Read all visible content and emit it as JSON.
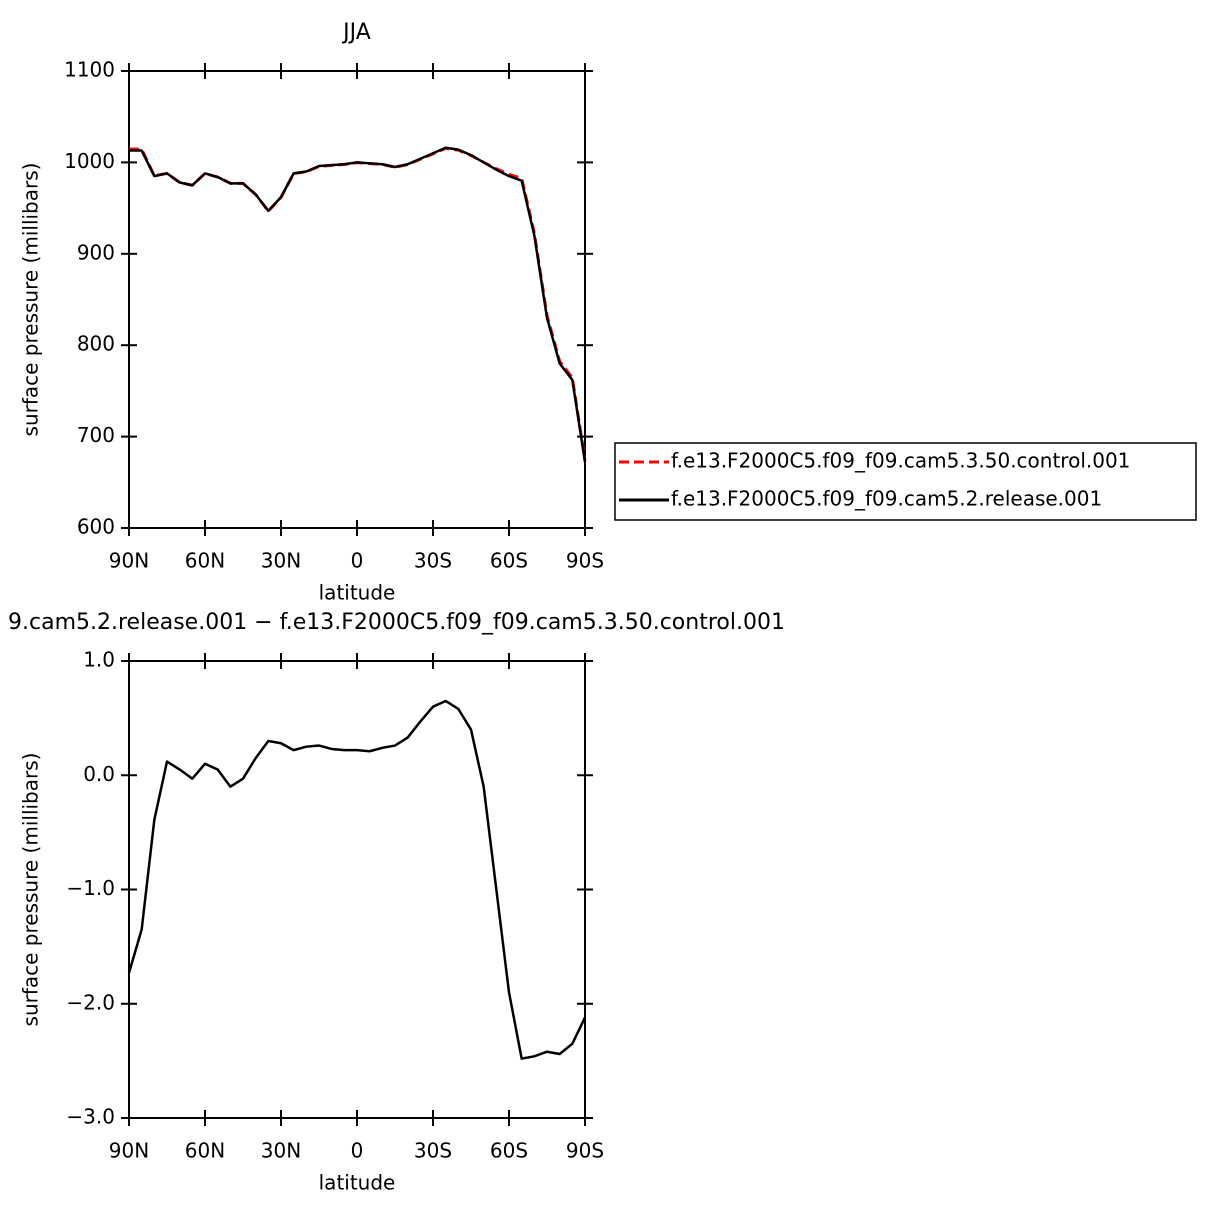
{
  "chart_data": [
    {
      "type": "line",
      "title": "JJA",
      "xlabel": "latitude",
      "ylabel": "surface pressure (millibars)",
      "x": [
        90,
        85,
        80,
        75,
        70,
        65,
        60,
        55,
        50,
        45,
        40,
        35,
        30,
        25,
        20,
        15,
        10,
        5,
        0,
        -5,
        -10,
        -15,
        -20,
        -25,
        -30,
        -35,
        -40,
        -45,
        -50,
        -55,
        -60,
        -65,
        -70,
        -75,
        -80,
        -85,
        -90
      ],
      "series": [
        {
          "name": "f.e13.F2000C5.f09_f09.cam5.3.50.control.001",
          "color": "#ff0000",
          "dash": true,
          "values": [
            1014.7,
            1014.3,
            985.4,
            987.9,
            978,
            975,
            987.9,
            984,
            977.1,
            977,
            964.9,
            946.7,
            961.7,
            987.8,
            989.8,
            995.7,
            996.8,
            997.8,
            999.8,
            998.8,
            997.8,
            994.7,
            997.7,
            1003.5,
            1009.4,
            1015.4,
            1013.4,
            1007.6,
            1000.1,
            993,
            986.9,
            982.5,
            922.5,
            832.4,
            782.4,
            764.4,
            674.1
          ]
        },
        {
          "name": "f.e13.F2000C5.f09_f09.cam5.2.release.001",
          "color": "#000000",
          "dash": false,
          "values": [
            1013,
            1013,
            985,
            988,
            978,
            975,
            988,
            984,
            977,
            977,
            965,
            947,
            962,
            988,
            990,
            996,
            997,
            998,
            1000,
            999,
            998,
            995,
            998,
            1004,
            1010,
            1016,
            1014,
            1008,
            1000,
            992,
            985,
            980,
            920,
            830,
            780,
            762,
            672
          ]
        }
      ],
      "xlim": [
        90,
        -90
      ],
      "xticks": [
        {
          "value": 90,
          "label": "90N"
        },
        {
          "value": 60,
          "label": "60N"
        },
        {
          "value": 30,
          "label": "30N"
        },
        0,
        {
          "value": -30,
          "label": "30S"
        },
        {
          "value": -60,
          "label": "60S"
        },
        {
          "value": -90,
          "label": "90S"
        }
      ],
      "ylim": [
        600,
        1100
      ],
      "yticks": [
        600,
        700,
        800,
        900,
        1000,
        1100
      ],
      "legend": "right"
    },
    {
      "type": "line",
      "title": "9.cam5.2.release.001 − f.e13.F2000C5.f09_f09.cam5.3.50.control.001",
      "xlabel": "latitude",
      "ylabel": "surface pressure (millibars)",
      "x": [
        90,
        85,
        80,
        75,
        70,
        65,
        60,
        55,
        50,
        45,
        40,
        35,
        30,
        25,
        20,
        15,
        10,
        5,
        0,
        -5,
        -10,
        -15,
        -20,
        -25,
        -30,
        -35,
        -40,
        -45,
        -50,
        -55,
        -60,
        -65,
        -70,
        -75,
        -80,
        -85,
        -90
      ],
      "series": [
        {
          "color": "#000000",
          "values": [
            -1.73,
            -1.35,
            -0.39,
            0.12,
            0.05,
            -0.03,
            0.1,
            0.05,
            -0.1,
            -0.03,
            0.15,
            0.3,
            0.28,
            0.22,
            0.25,
            0.26,
            0.23,
            0.22,
            0.22,
            0.21,
            0.24,
            0.26,
            0.33,
            0.47,
            0.6,
            0.65,
            0.58,
            0.4,
            -0.1,
            -1.0,
            -1.9,
            -2.48,
            -2.46,
            -2.42,
            -2.44,
            -2.35,
            -2.12
          ]
        }
      ],
      "xlim": [
        90,
        -90
      ],
      "xticks": [
        {
          "value": 90,
          "label": "90N"
        },
        {
          "value": 60,
          "label": "60N"
        },
        {
          "value": 30,
          "label": "30N"
        },
        0,
        {
          "value": -30,
          "label": "30S"
        },
        {
          "value": -60,
          "label": "60S"
        },
        {
          "value": -90,
          "label": "90S"
        }
      ],
      "ylim": [
        -3,
        1
      ],
      "yticks": [
        {
          "value": -3,
          "label": "−3.0"
        },
        {
          "value": -2,
          "label": "−2.0"
        },
        {
          "value": -1,
          "label": "−1.0"
        },
        {
          "value": 0,
          "label": "0.0"
        },
        {
          "value": 1,
          "label": "1.0"
        }
      ]
    }
  ]
}
